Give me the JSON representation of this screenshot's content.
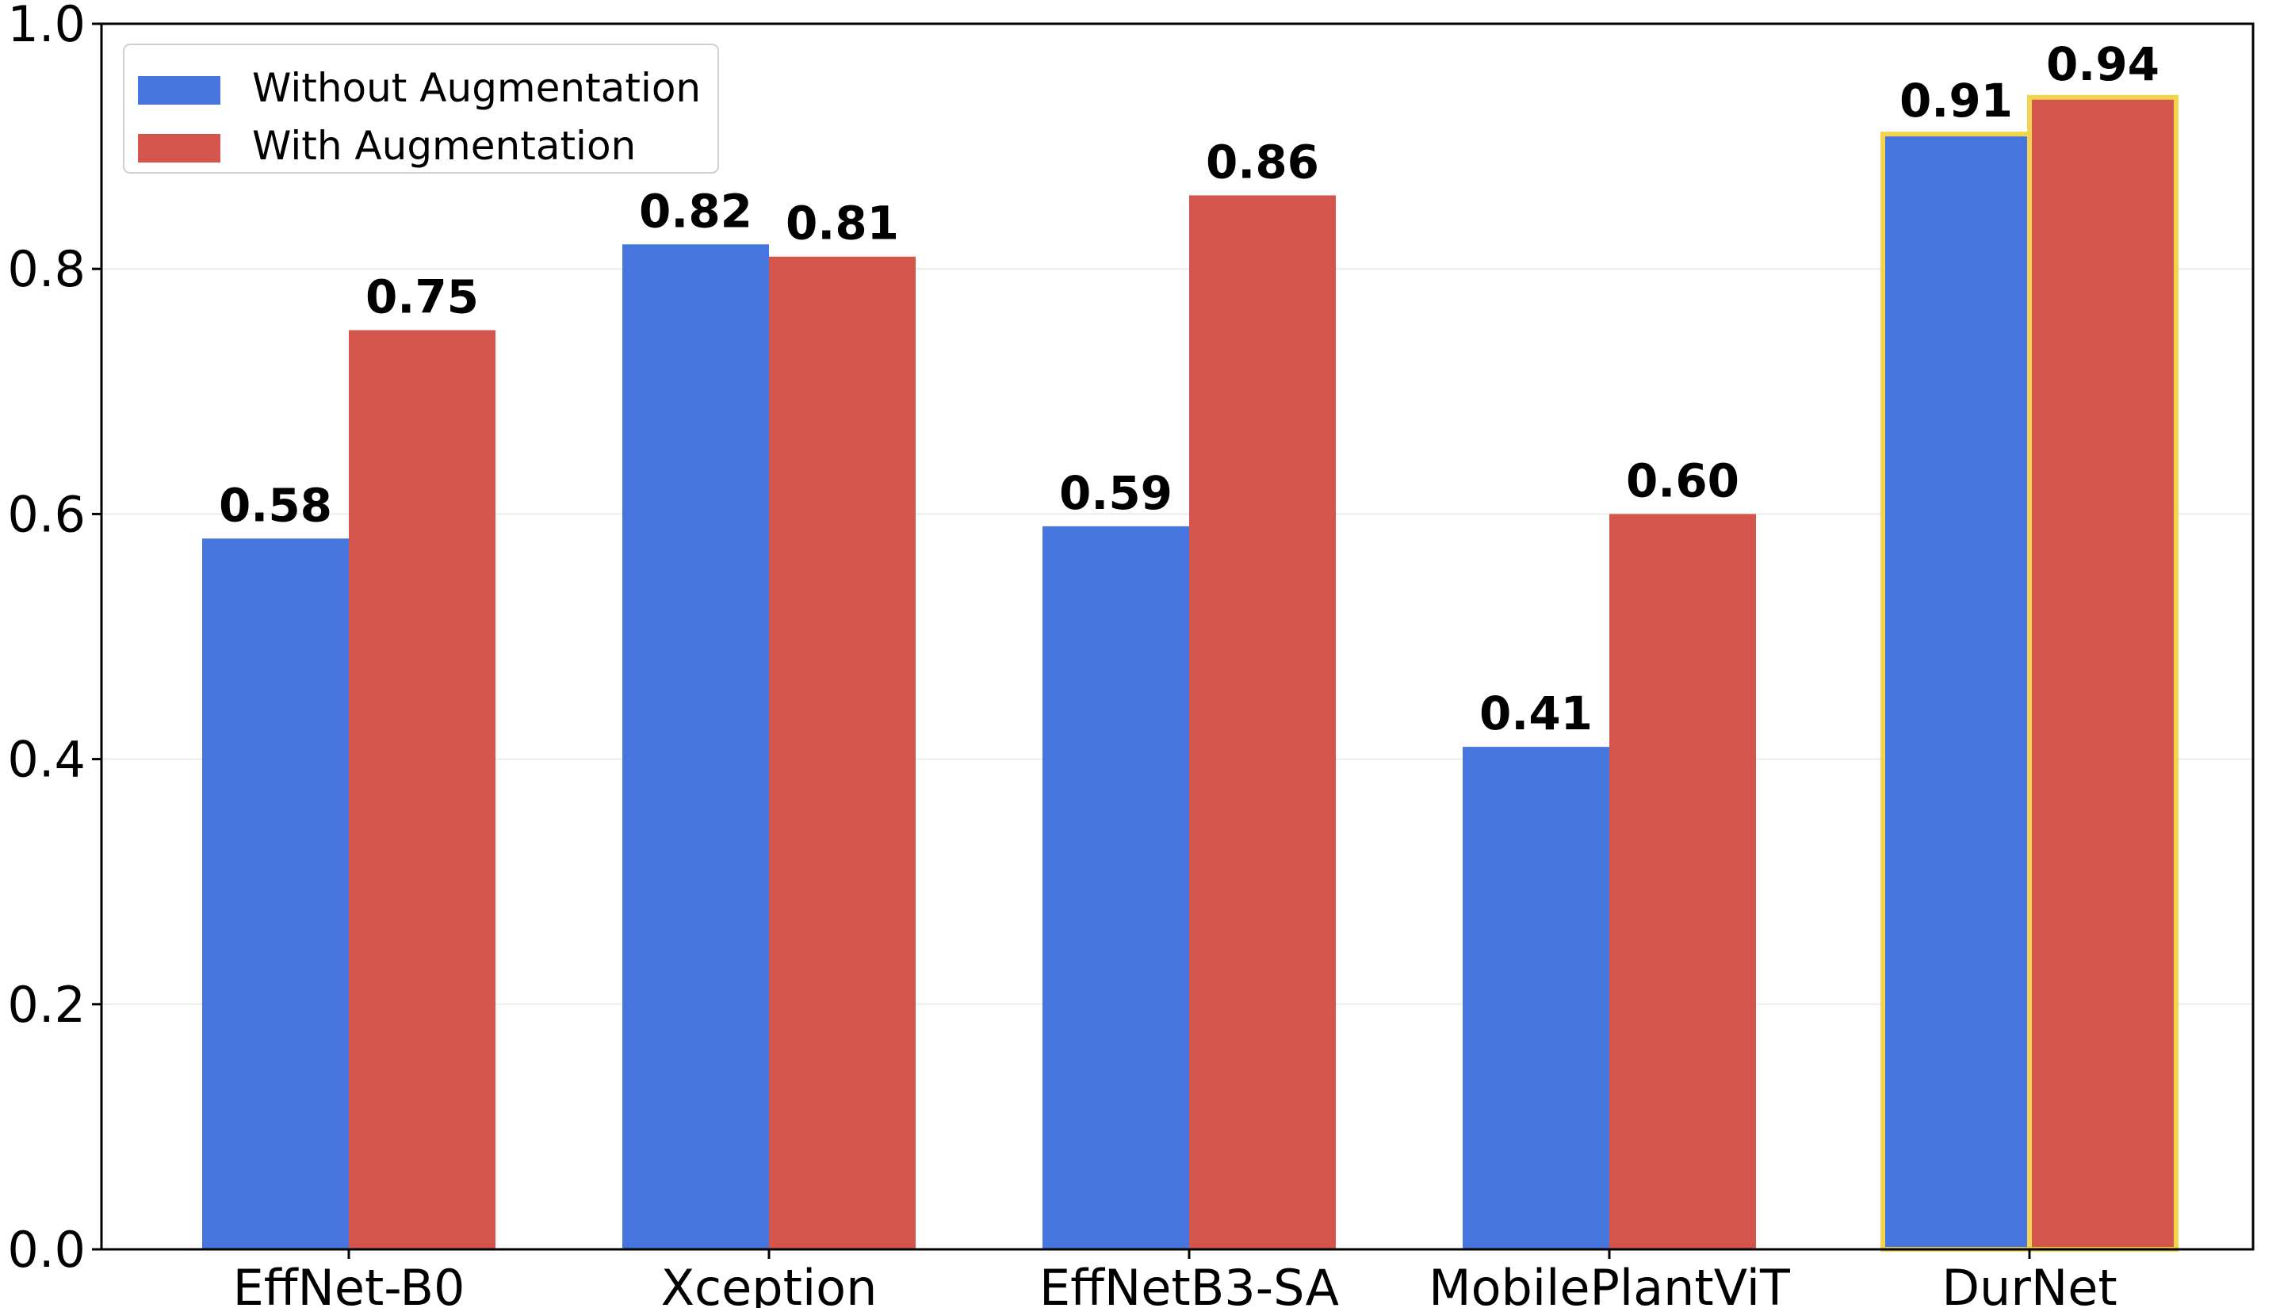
{
  "chart_data": {
    "type": "bar",
    "title": "",
    "xlabel": "",
    "ylabel": "",
    "categories": [
      "EffNet-B0",
      "Xception",
      "EffNetB3-SA",
      "MobilePlantViT",
      "DurNet"
    ],
    "series": [
      {
        "name": "Without Augmentation",
        "color": "#4575DD",
        "values": [
          0.58,
          0.82,
          0.59,
          0.41,
          0.91
        ]
      },
      {
        "name": "With Augmentation",
        "color": "#D4554C",
        "values": [
          0.75,
          0.81,
          0.86,
          0.6,
          0.94
        ]
      }
    ],
    "value_labels": [
      [
        "0.58",
        "0.82",
        "0.59",
        "0.41",
        "0.91"
      ],
      [
        "0.75",
        "0.81",
        "0.86",
        "0.60",
        "0.94"
      ]
    ],
    "ylim": [
      0.0,
      1.0
    ],
    "yticks": [
      "0.0",
      "0.2",
      "0.4",
      "0.6",
      "0.8",
      "1.0"
    ],
    "grid": "horizontal, light",
    "legend": "top-left",
    "highlighted_category": "DurNet",
    "highlight_color": "#F2D44E"
  }
}
